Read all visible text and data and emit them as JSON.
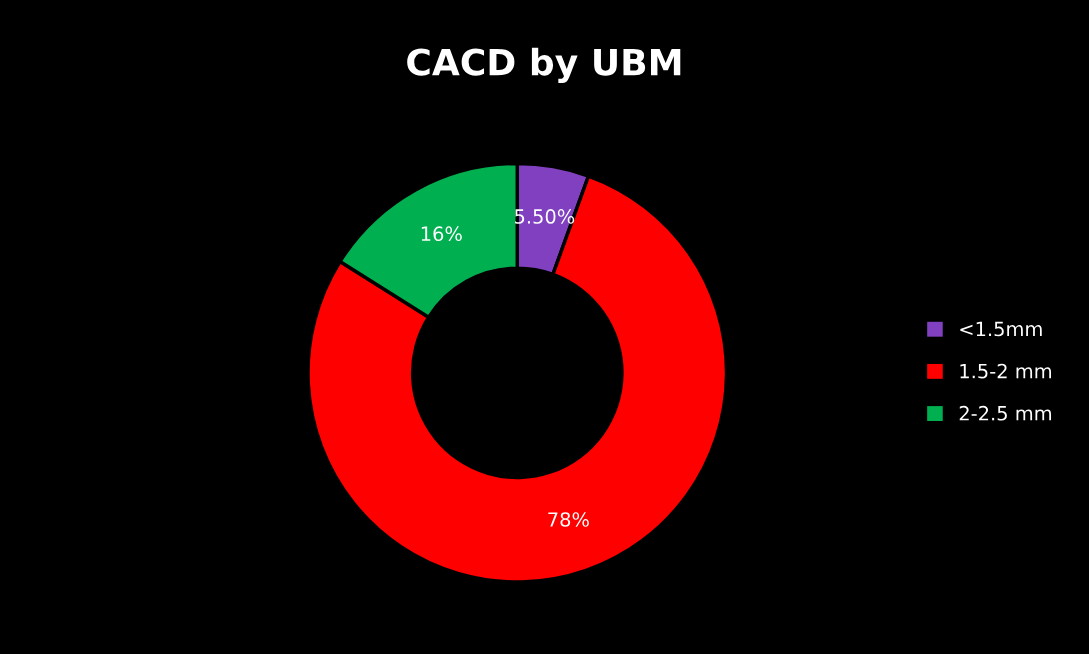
{
  "chart_data": {
    "type": "donut",
    "title": "CACD by UBM",
    "categories": [
      "<1.5mm",
      "1.5-2 mm",
      "2-2.5 mm"
    ],
    "values": [
      5.5,
      78,
      16
    ],
    "colors": [
      "#8040c0",
      "#ff0000",
      "#00b050"
    ],
    "value_labels": [
      "5.50%",
      "78%",
      "16%"
    ],
    "legend": "right"
  }
}
